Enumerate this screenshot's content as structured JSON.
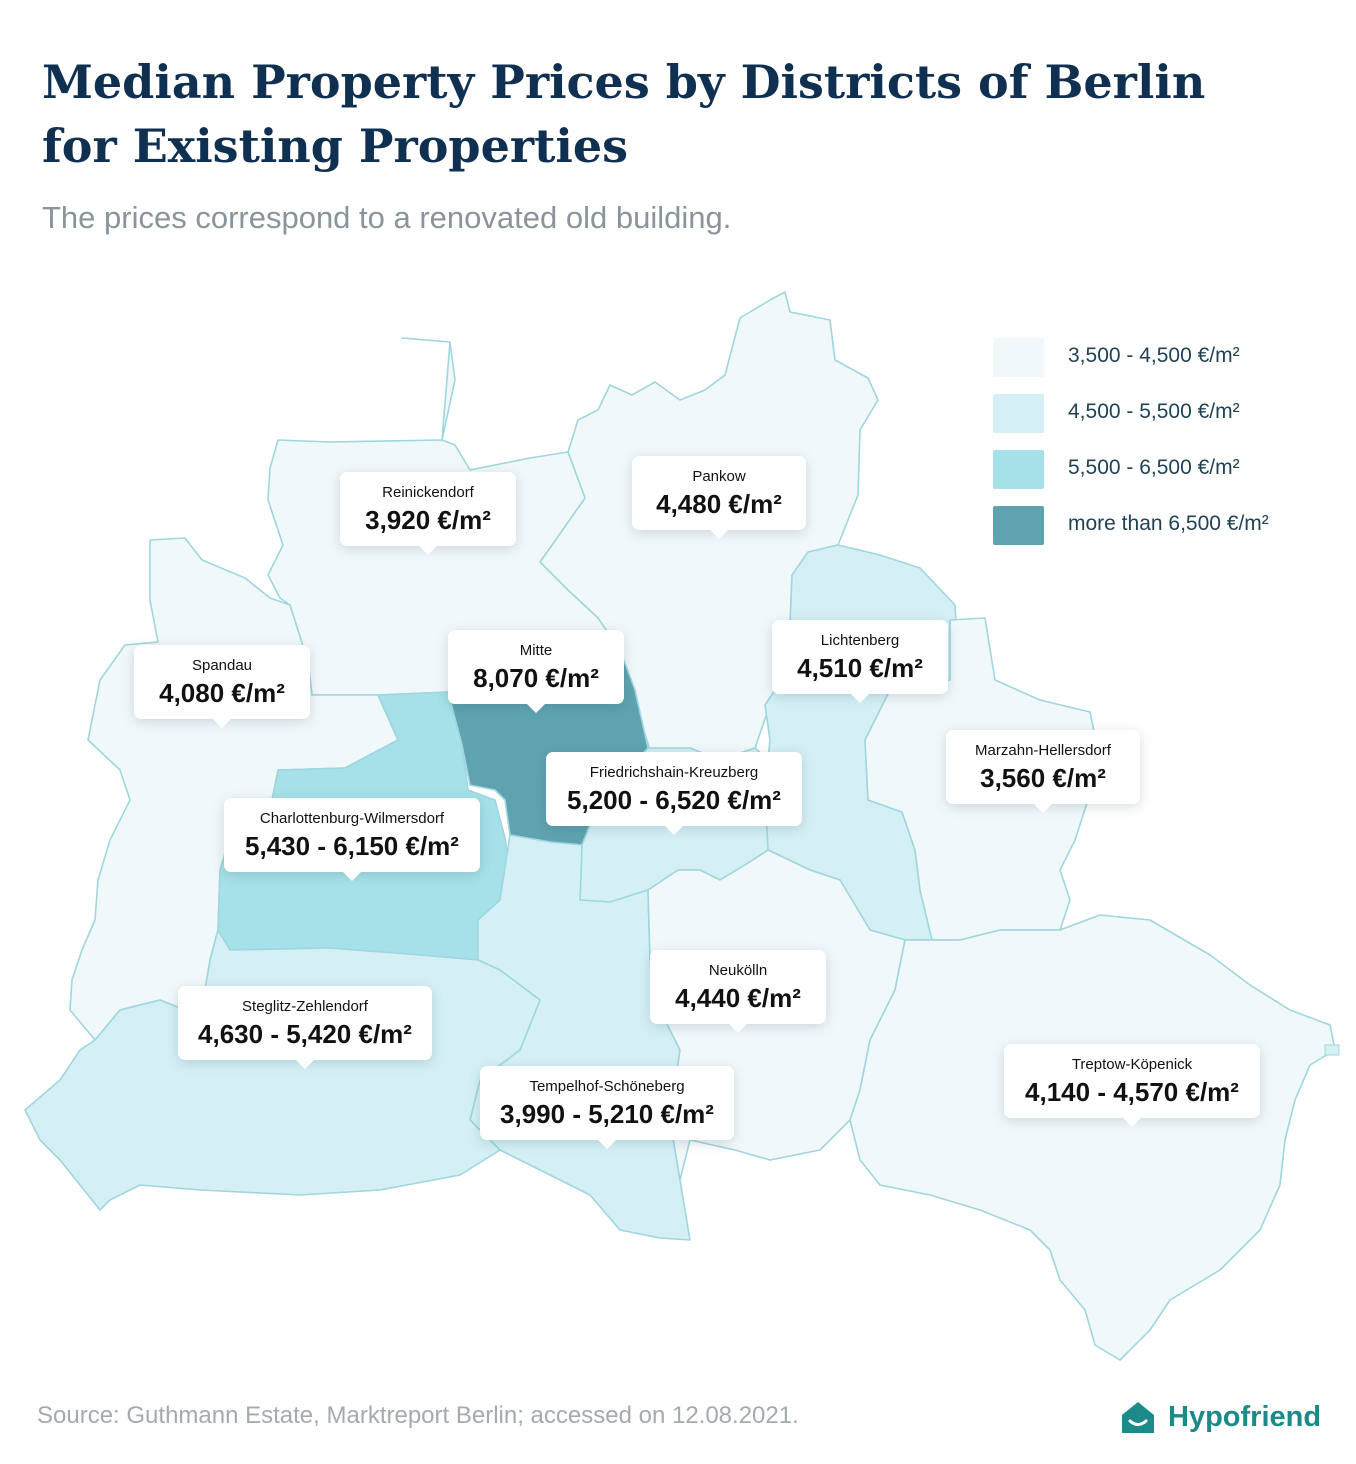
{
  "title": "Median Property Prices by Districts of Berlin for Existing Properties",
  "subtitle": "The prices correspond to a renovated old building.",
  "legend": [
    {
      "label": "3,500 - 4,500 €/m²",
      "color": "#f1f8fa"
    },
    {
      "label": "4,500 - 5,500 €/m²",
      "color": "#d4f0f5"
    },
    {
      "label": "5,500 - 6,500 €/m²",
      "color": "#a6e0e9"
    },
    {
      "label": "more than 6,500 €/m²",
      "color": "#5fa3b0"
    }
  ],
  "colors": {
    "low": "#f1f8fa",
    "mid": "#d4f0f5",
    "high": "#a6e0e9",
    "top": "#5fa3b0",
    "border": "#9fd6df",
    "title": "#0f3050",
    "brand": "#1d8a8a"
  },
  "districts": [
    {
      "name": "Reinickendorf",
      "price": "3,920 €/m²"
    },
    {
      "name": "Pankow",
      "price": "4,480 €/m²"
    },
    {
      "name": "Spandau",
      "price": "4,080 €/m²"
    },
    {
      "name": "Mitte",
      "price": "8,070 €/m²"
    },
    {
      "name": "Lichtenberg",
      "price": "4,510 €/m²"
    },
    {
      "name": "Marzahn-Hellersdorf",
      "price": "3,560 €/m²"
    },
    {
      "name": "Friedrichshain-Kreuzberg",
      "price": "5,200 - 6,520 €/m²"
    },
    {
      "name": "Charlottenburg-Wilmersdorf",
      "price": "5,430 - 6,150 €/m²"
    },
    {
      "name": "Neukölln",
      "price": "4,440 €/m²"
    },
    {
      "name": "Steglitz-Zehlendorf",
      "price": "4,630 - 5,420 €/m²"
    },
    {
      "name": "Tempelhof-Schöneberg",
      "price": "3,990 - 5,210 €/m²"
    },
    {
      "name": "Treptow-Köpenick",
      "price": "4,140 - 4,570 €/m²"
    }
  ],
  "source": "Source: Guthmann Estate, Marktreport Berlin; accessed on 12.08.2021.",
  "brand": {
    "name": "Hypofriend",
    "icon": "house-smile-icon"
  }
}
